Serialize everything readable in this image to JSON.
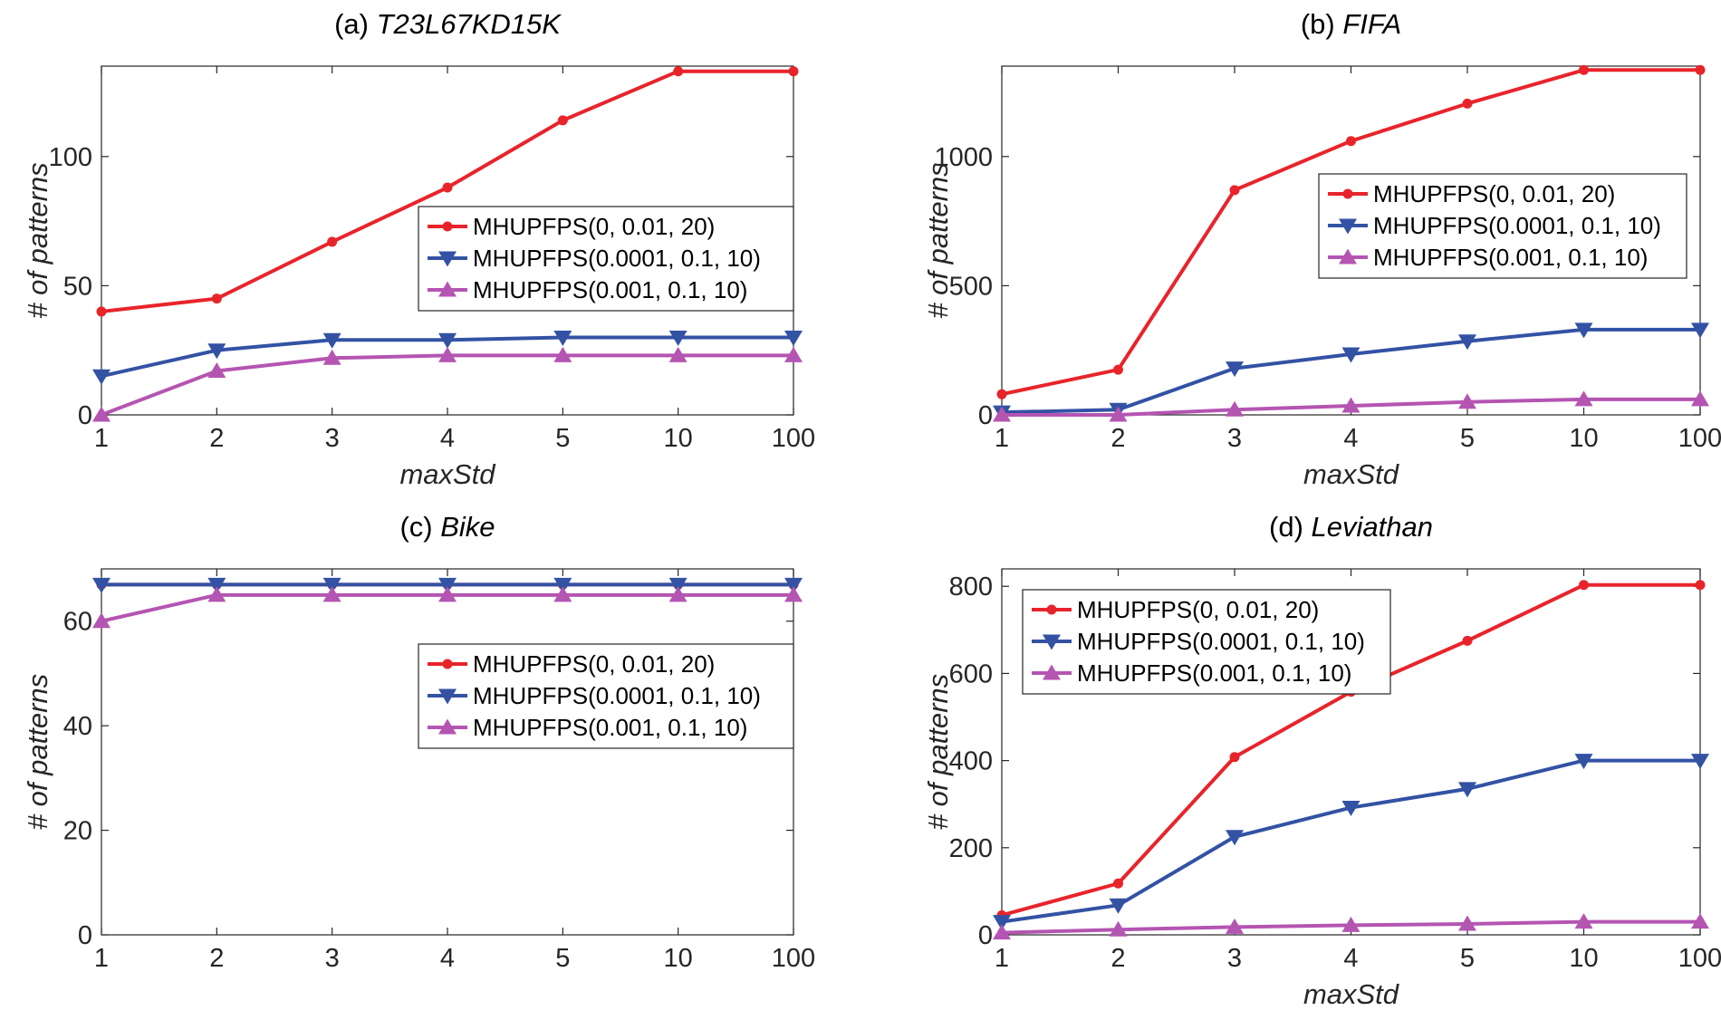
{
  "chart_data": [
    {
      "type": "line",
      "title_prefix": "(a) ",
      "title_name": "T23L67KD15K",
      "xlabel": "maxStd",
      "ylabel": "# of patterns",
      "categories": [
        "1",
        "2",
        "3",
        "4",
        "5",
        "10",
        "100"
      ],
      "ylim": [
        0,
        135
      ],
      "yticks": [
        0,
        50,
        100
      ],
      "legend_position": "center-right",
      "series": [
        {
          "name": "MHUPFPS(0, 0.01, 20)",
          "marker": "dot",
          "color": "#e8242b",
          "values": [
            40,
            45,
            67,
            88,
            114,
            133,
            133
          ]
        },
        {
          "name": "MHUPFPS(0.0001, 0.1, 10)",
          "marker": "triangle-down",
          "color": "#3352a4",
          "values": [
            15,
            25,
            29,
            29,
            30,
            30,
            30
          ]
        },
        {
          "name": "MHUPFPS(0.001, 0.1, 10)",
          "marker": "triangle-up",
          "color": "#b455b2",
          "values": [
            0,
            17,
            22,
            23,
            23,
            23,
            23
          ]
        }
      ]
    },
    {
      "type": "line",
      "title_prefix": "(b) ",
      "title_name": "FIFA",
      "xlabel": "maxStd",
      "ylabel": "# of patterns",
      "categories": [
        "1",
        "2",
        "3",
        "4",
        "5",
        "10",
        "100"
      ],
      "ylim": [
        0,
        1350
      ],
      "yticks": [
        0,
        500,
        1000
      ],
      "legend_position": "top-right",
      "series": [
        {
          "name": "MHUPFPS(0, 0.01, 20)",
          "marker": "dot",
          "color": "#e8242b",
          "values": [
            80,
            175,
            870,
            1060,
            1205,
            1335,
            1335
          ]
        },
        {
          "name": "MHUPFPS(0.0001, 0.1, 10)",
          "marker": "triangle-down",
          "color": "#3352a4",
          "values": [
            10,
            20,
            180,
            235,
            285,
            330,
            330
          ]
        },
        {
          "name": "MHUPFPS(0.001, 0.1, 10)",
          "marker": "triangle-up",
          "color": "#b455b2",
          "values": [
            0,
            0,
            20,
            35,
            50,
            60,
            60
          ]
        }
      ]
    },
    {
      "type": "line",
      "title_prefix": "(c) ",
      "title_name": "Bike",
      "xlabel": "",
      "ylabel": "# of patterns",
      "categories": [
        "1",
        "2",
        "3",
        "4",
        "5",
        "10",
        "100"
      ],
      "ylim": [
        0,
        70
      ],
      "yticks": [
        0,
        20,
        40,
        60
      ],
      "legend_position": "center-right",
      "series": [
        {
          "name": "MHUPFPS(0, 0.01, 20)",
          "marker": "dot",
          "color": "#e8242b",
          "values": [
            67,
            67,
            67,
            67,
            67,
            67,
            67
          ]
        },
        {
          "name": "MHUPFPS(0.0001, 0.1, 10)",
          "marker": "triangle-down",
          "color": "#3352a4",
          "values": [
            67,
            67,
            67,
            67,
            67,
            67,
            67
          ]
        },
        {
          "name": "MHUPFPS(0.001, 0.1, 10)",
          "marker": "triangle-up",
          "color": "#b455b2",
          "values": [
            60,
            65,
            65,
            65,
            65,
            65,
            65
          ]
        }
      ]
    },
    {
      "type": "line",
      "title_prefix": "(d) ",
      "title_name": "Leviathan",
      "xlabel": "maxStd",
      "ylabel": "# of patterns",
      "categories": [
        "1",
        "2",
        "3",
        "4",
        "5",
        "10",
        "100"
      ],
      "ylim": [
        0,
        840
      ],
      "yticks": [
        0,
        200,
        400,
        600,
        800
      ],
      "legend_position": "top-left",
      "series": [
        {
          "name": "MHUPFPS(0, 0.01, 20)",
          "marker": "dot",
          "color": "#e8242b",
          "values": [
            45,
            118,
            408,
            558,
            675,
            803,
            803
          ]
        },
        {
          "name": "MHUPFPS(0.0001, 0.1, 10)",
          "marker": "triangle-down",
          "color": "#3352a4",
          "values": [
            30,
            68,
            225,
            292,
            335,
            400,
            400
          ]
        },
        {
          "name": "MHUPFPS(0.001, 0.1, 10)",
          "marker": "triangle-up",
          "color": "#b455b2",
          "values": [
            5,
            12,
            18,
            22,
            25,
            30,
            30
          ]
        }
      ]
    }
  ]
}
